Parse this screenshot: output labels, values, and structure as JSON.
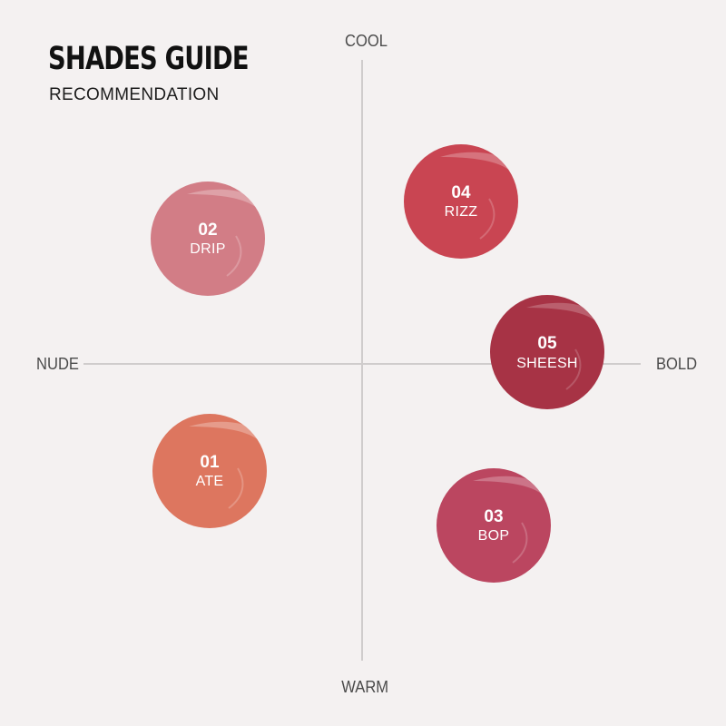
{
  "header": {
    "title": "SHADES GUIDE",
    "subtitle": "RECOMMENDATION"
  },
  "axes": {
    "top": "COOL",
    "bottom": "WARM",
    "left": "NUDE",
    "right": "BOLD"
  },
  "shades": [
    {
      "number": "02",
      "name": "DRIP",
      "color": "#d27d86"
    },
    {
      "number": "04",
      "name": "RIZZ",
      "color": "#c94552"
    },
    {
      "number": "05",
      "name": "SHEESH",
      "color": "#a73345"
    },
    {
      "number": "01",
      "name": "ATE",
      "color": "#dd765f"
    },
    {
      "number": "03",
      "name": "BOP",
      "color": "#bb4660"
    }
  ]
}
